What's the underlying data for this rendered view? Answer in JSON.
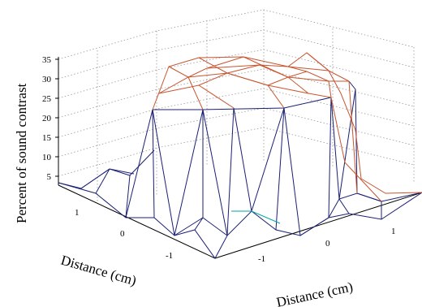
{
  "chart_data": {
    "type": "surface",
    "title": "",
    "xlabel": "Distance (cm)",
    "ylabel": "Distance (cm)",
    "zlabel": "Percent of sound contrast",
    "z_ticks": [
      "5",
      "10",
      "15",
      "20",
      "25",
      "30",
      "35"
    ],
    "x_ticks": [
      "1",
      "0",
      "-1"
    ],
    "y_ticks": [
      "-1",
      "0",
      "1"
    ],
    "zlim": [
      0,
      37
    ],
    "grid": true,
    "surface": {
      "plateau_value": 30,
      "peak_value": 36,
      "edge_values": [
        2,
        0,
        7,
        3,
        4,
        0,
        3,
        5,
        2,
        1,
        2,
        5,
        1,
        0,
        3
      ]
    }
  }
}
